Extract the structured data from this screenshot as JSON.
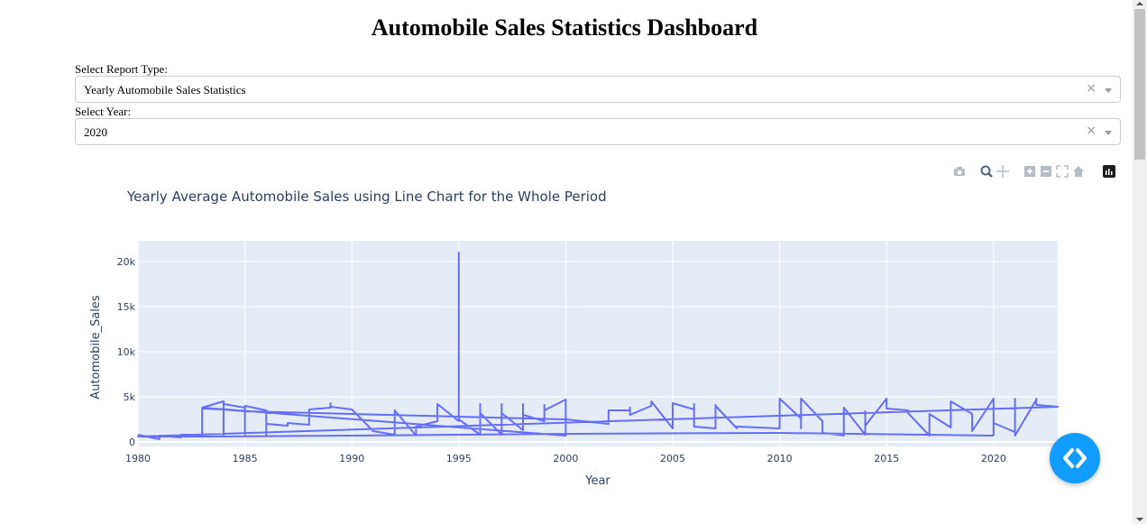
{
  "page": {
    "title": "Automobile Sales Statistics Dashboard"
  },
  "report_select": {
    "label": "Select Report Type:",
    "value": "Yearly Automobile Sales Statistics",
    "clear_glyph": "×"
  },
  "year_select": {
    "label": "Select Year:",
    "value": "2020",
    "clear_glyph": "×"
  },
  "modebar": {
    "icons": [
      "camera-icon",
      "zoom-icon",
      "pan-icon",
      "zoom-in-icon",
      "zoom-out-icon",
      "autoscale-icon",
      "reset-axes-icon",
      "plotly-logo-icon"
    ]
  },
  "colors": {
    "line": "#636efa",
    "plot_bg": "#e5ecf6",
    "embed_button": "#119dff"
  },
  "chart_data": {
    "type": "line",
    "title": "Yearly Average Automobile Sales using Line Chart for the Whole Period",
    "xlabel": "Year",
    "ylabel": "Automobile_Sales",
    "xlim": [
      1980,
      2023
    ],
    "ylim": [
      -500,
      22300
    ],
    "x_ticks": [
      1980,
      1985,
      1990,
      1995,
      2000,
      2005,
      2010,
      2015,
      2020
    ],
    "x_tick_labels": [
      "1980",
      "1985",
      "1990",
      "1995",
      "2000",
      "2005",
      "2010",
      "2015",
      "2020"
    ],
    "y_ticks": [
      0,
      5000,
      10000,
      15000,
      20000
    ],
    "y_tick_labels": [
      "0",
      "5k",
      "10k",
      "15k",
      "20k"
    ],
    "grid": true,
    "series": [
      {
        "x": [
          1980,
          1981,
          1981,
          1982,
          1982,
          1983,
          1983,
          1983,
          1984,
          1984,
          1984,
          1985,
          1985,
          1985,
          1986,
          1986,
          1986,
          1987,
          1987,
          1988,
          1988,
          1988,
          1989,
          1989,
          1989,
          1990,
          1991,
          1992,
          1992,
          1992,
          1993,
          1993,
          1994,
          1994,
          1995,
          1995,
          1995,
          1996,
          1996,
          1996,
          1997,
          1997,
          1997,
          1998,
          1998,
          1998,
          1999,
          1999,
          1999,
          2000,
          2000,
          2000,
          1983,
          1983,
          1984,
          1985,
          1990,
          2000,
          2002,
          2002,
          2003,
          2003,
          2003,
          2004,
          2004,
          2004,
          2005,
          2005,
          2005,
          2006,
          2006,
          2006,
          2007,
          2007,
          2007,
          2008,
          2008,
          2010,
          2010,
          2011,
          2011,
          2011,
          2012,
          2012,
          2013,
          2013,
          2014,
          2014,
          2014,
          2015,
          2015,
          2015,
          2016,
          2016,
          2017,
          2017,
          2018,
          2018,
          2018,
          2019,
          2019,
          2019,
          2020,
          2020,
          2020,
          2021,
          2021,
          2021,
          2022,
          2022,
          2022,
          2023,
          1980,
          1983,
          1990,
          1995,
          2000,
          2010,
          2020
        ],
        "y": [
          800,
          300,
          700,
          500,
          800,
          700,
          1500,
          3800,
          4500,
          700,
          4200,
          3800,
          800,
          4000,
          3500,
          700,
          2000,
          1800,
          2100,
          1900,
          2400,
          3600,
          3800,
          4300,
          3900,
          3600,
          1200,
          800,
          1200,
          3500,
          700,
          1700,
          2300,
          4200,
          2300,
          21000,
          2500,
          800,
          4200,
          3200,
          800,
          4200,
          3200,
          1300,
          4200,
          3000,
          2300,
          4100,
          3500,
          4700,
          2100,
          700,
          3800,
          3700,
          3600,
          3400,
          3100,
          2500,
          2000,
          3500,
          3500,
          3800,
          3000,
          4000,
          4200,
          4500,
          1500,
          1800,
          4300,
          3600,
          4200,
          1700,
          1500,
          4100,
          4000,
          1500,
          1700,
          1500,
          4800,
          2600,
          1500,
          4800,
          2300,
          1000,
          700,
          3800,
          800,
          3400,
          1800,
          4800,
          4000,
          3700,
          3500,
          3200,
          700,
          3100,
          1600,
          2800,
          4500,
          3100,
          2700,
          1200,
          4800,
          800,
          2100,
          1100,
          4800,
          700,
          4700,
          4800,
          4100,
          3900,
          600,
          600,
          700,
          800,
          900,
          1000,
          700
        ]
      }
    ]
  }
}
